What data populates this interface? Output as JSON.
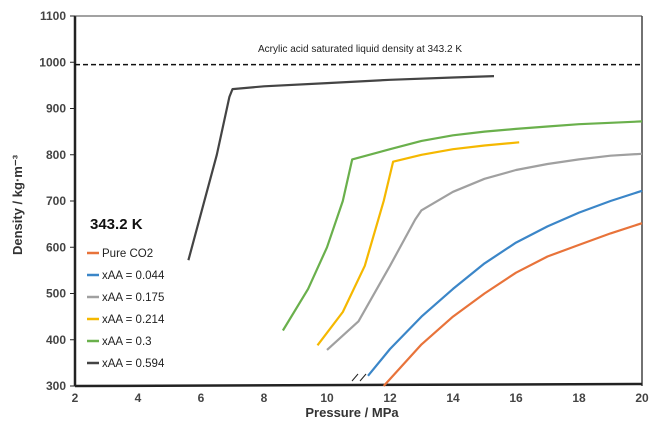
{
  "chart_data": {
    "type": "line",
    "title": "",
    "xlabel": "Pressure / MPa",
    "ylabel": "Density / kg·m⁻³",
    "xlim": [
      2,
      20
    ],
    "ylim": [
      300,
      1100
    ],
    "xticks": [
      2,
      4,
      6,
      8,
      10,
      12,
      14,
      16,
      18,
      20
    ],
    "yticks": [
      300,
      400,
      500,
      600,
      700,
      800,
      900,
      1000,
      1100
    ],
    "grid": false,
    "legend_position": "left",
    "legend_title": "343.2 K",
    "reference_line": {
      "y": 995,
      "label": "Acrylic acid saturated liquid density at 343.2 K",
      "style": "dashed"
    },
    "series": [
      {
        "name": "Pure CO2",
        "color": "#e8733a",
        "x": [
          11.8,
          13,
          14,
          15,
          16,
          17,
          18,
          19,
          20
        ],
        "y": [
          300,
          390,
          450,
          500,
          545,
          580,
          605,
          630,
          652
        ]
      },
      {
        "name": "xAA = 0.044",
        "color": "#3b86c8",
        "x": [
          11.3,
          12,
          13,
          14,
          15,
          16,
          17,
          18,
          19,
          20
        ],
        "y": [
          322,
          380,
          450,
          510,
          565,
          610,
          645,
          675,
          700,
          722
        ]
      },
      {
        "name": "xAA = 0.175",
        "color": "#a0a0a0",
        "x": [
          10,
          11,
          12,
          12.8,
          13,
          14,
          15,
          16,
          17,
          18,
          19,
          20
        ],
        "y": [
          378,
          440,
          560,
          660,
          680,
          720,
          748,
          767,
          780,
          790,
          798,
          802
        ]
      },
      {
        "name": "xAA = 0.214",
        "color": "#f5b800",
        "x": [
          9.7,
          10.5,
          11.2,
          11.8,
          12.1,
          13,
          14,
          15,
          16.1
        ],
        "y": [
          388,
          460,
          560,
          700,
          785,
          800,
          812,
          820,
          827
        ]
      },
      {
        "name": "xAA = 0.3",
        "color": "#6ab04c",
        "x": [
          8.6,
          9.4,
          10,
          10.5,
          10.8,
          12,
          13,
          14,
          15,
          16,
          17,
          18,
          19,
          20
        ],
        "y": [
          420,
          510,
          600,
          700,
          790,
          812,
          830,
          842,
          850,
          856,
          861,
          866,
          869,
          872
        ]
      },
      {
        "name": "xAA = 0.594",
        "color": "#444444",
        "x": [
          5.6,
          6.5,
          6.9,
          7,
          8,
          10,
          12,
          14,
          15.3
        ],
        "y": [
          572,
          800,
          925,
          942,
          948,
          955,
          962,
          967,
          970
        ]
      }
    ]
  }
}
